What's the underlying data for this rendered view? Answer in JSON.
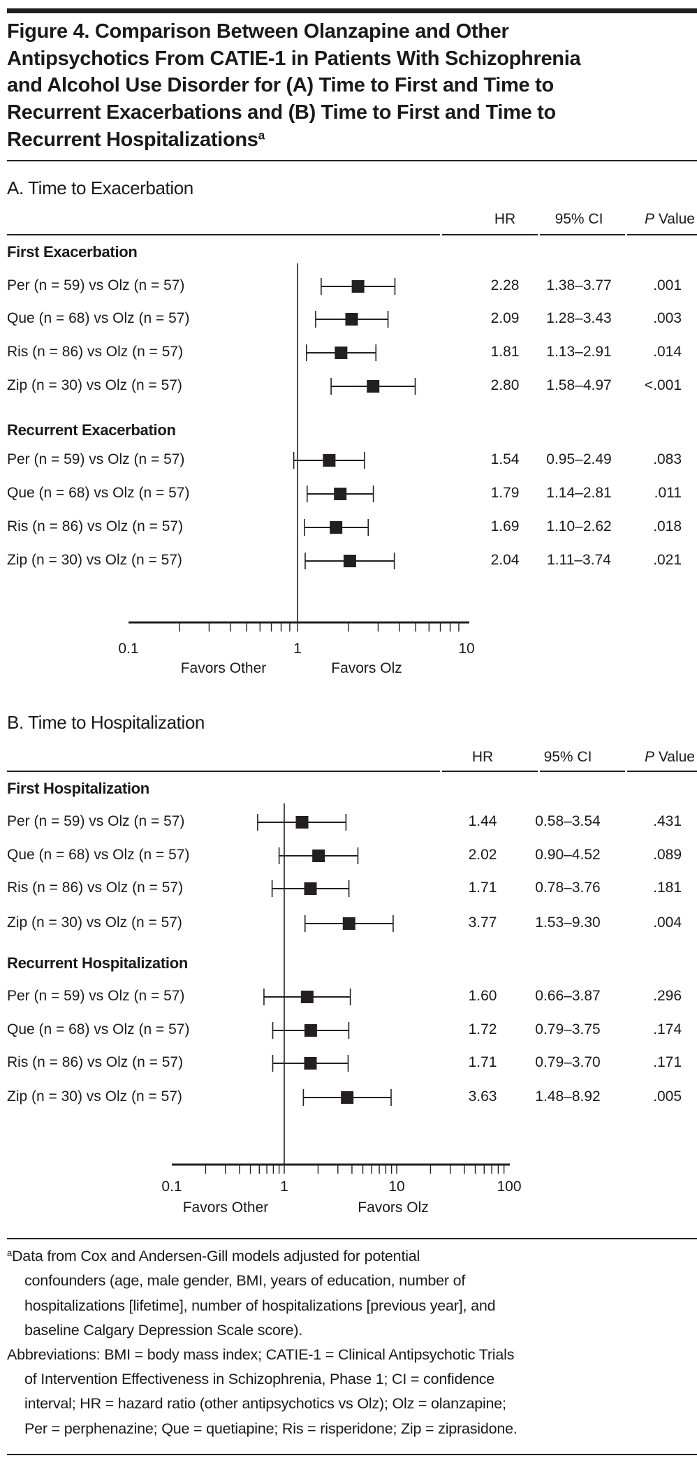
{
  "figure": {
    "title_lines": [
      "Figure 4. Comparison Between Olanzapine and Other",
      "Antipsychotics From CATIE-1 in Patients With Schizophrenia",
      "and Alcohol Use Disorder for (A) Time to First and Time to",
      "Recurrent Exacerbations and (B) Time to First and Time to",
      "Recurrent Hospitalizations"
    ],
    "title_superscript": "a"
  },
  "columns": {
    "hr": "HR",
    "ci": "95% CI",
    "p_italic": "P",
    "p_rest": " Value"
  },
  "chart_data": [
    {
      "type": "forest",
      "title": "A. Time to Exacerbation",
      "scale": "log",
      "xlim": [
        0.1,
        10
      ],
      "tick_labels": [
        "0.1",
        "1",
        "10"
      ],
      "ticks": [
        0.1,
        1,
        10
      ],
      "reference_line": 1,
      "favors_left": "Favors Other",
      "favors_right": "Favors Olz",
      "groups": [
        {
          "name": "First Exacerbation",
          "rows": [
            {
              "label": "Per (n = 59) vs Olz (n = 57)",
              "hr": 2.28,
              "lo": 1.38,
              "hi": 3.77,
              "hr_text": "2.28",
              "ci_text": "1.38–3.77",
              "p_text": ".001"
            },
            {
              "label": "Que (n = 68) vs Olz (n = 57)",
              "hr": 2.09,
              "lo": 1.28,
              "hi": 3.43,
              "hr_text": "2.09",
              "ci_text": "1.28–3.43",
              "p_text": ".003"
            },
            {
              "label": "Ris (n = 86) vs Olz (n = 57)",
              "hr": 1.81,
              "lo": 1.13,
              "hi": 2.91,
              "hr_text": "1.81",
              "ci_text": "1.13–2.91",
              "p_text": ".014"
            },
            {
              "label": "Zip (n = 30) vs Olz (n = 57)",
              "hr": 2.8,
              "lo": 1.58,
              "hi": 4.97,
              "hr_text": "2.80",
              "ci_text": "1.58–4.97",
              "p_text": "<.001"
            }
          ]
        },
        {
          "name": "Recurrent Exacerbation",
          "rows": [
            {
              "label": "Per (n = 59) vs Olz (n = 57)",
              "hr": 1.54,
              "lo": 0.95,
              "hi": 2.49,
              "hr_text": "1.54",
              "ci_text": "0.95–2.49",
              "p_text": ".083"
            },
            {
              "label": "Que (n = 68) vs Olz (n = 57)",
              "hr": 1.79,
              "lo": 1.14,
              "hi": 2.81,
              "hr_text": "1.79",
              "ci_text": "1.14–2.81",
              "p_text": ".011"
            },
            {
              "label": "Ris (n = 86) vs Olz (n = 57)",
              "hr": 1.69,
              "lo": 1.1,
              "hi": 2.62,
              "hr_text": "1.69",
              "ci_text": "1.10–2.62",
              "p_text": ".018"
            },
            {
              "label": "Zip (n = 30) vs Olz (n = 57)",
              "hr": 2.04,
              "lo": 1.11,
              "hi": 3.74,
              "hr_text": "2.04",
              "ci_text": "1.11–3.74",
              "p_text": ".021"
            }
          ]
        }
      ]
    },
    {
      "type": "forest",
      "title": "B. Time to Hospitalization",
      "scale": "log",
      "xlim": [
        0.1,
        100
      ],
      "tick_labels": [
        "0.1",
        "1",
        "10",
        "100"
      ],
      "ticks": [
        0.1,
        1,
        10,
        100
      ],
      "reference_line": 1,
      "favors_left": "Favors Other",
      "favors_right": "Favors Olz",
      "groups": [
        {
          "name": "First Hospitalization",
          "rows": [
            {
              "label": "Per (n = 59) vs Olz (n = 57)",
              "hr": 1.44,
              "lo": 0.58,
              "hi": 3.54,
              "hr_text": "1.44",
              "ci_text": "0.58–3.54",
              "p_text": ".431"
            },
            {
              "label": "Que (n = 68) vs Olz (n = 57)",
              "hr": 2.02,
              "lo": 0.9,
              "hi": 4.52,
              "hr_text": "2.02",
              "ci_text": "0.90–4.52",
              "p_text": ".089"
            },
            {
              "label": "Ris (n = 86) vs Olz (n = 57)",
              "hr": 1.71,
              "lo": 0.78,
              "hi": 3.76,
              "hr_text": "1.71",
              "ci_text": "0.78–3.76",
              "p_text": ".181"
            },
            {
              "label": "Zip (n = 30) vs Olz (n = 57)",
              "hr": 3.77,
              "lo": 1.53,
              "hi": 9.3,
              "hr_text": "3.77",
              "ci_text": "1.53–9.30",
              "p_text": ".004"
            }
          ]
        },
        {
          "name": "Recurrent Hospitalization",
          "rows": [
            {
              "label": "Per (n = 59) vs Olz (n = 57)",
              "hr": 1.6,
              "lo": 0.66,
              "hi": 3.87,
              "hr_text": "1.60",
              "ci_text": "0.66–3.87",
              "p_text": ".296"
            },
            {
              "label": "Que (n = 68) vs Olz (n = 57)",
              "hr": 1.72,
              "lo": 0.79,
              "hi": 3.75,
              "hr_text": "1.72",
              "ci_text": "0.79–3.75",
              "p_text": ".174"
            },
            {
              "label": "Ris (n = 86) vs Olz (n = 57)",
              "hr": 1.71,
              "lo": 0.79,
              "hi": 3.7,
              "hr_text": "1.71",
              "ci_text": "0.79–3.70",
              "p_text": ".171"
            },
            {
              "label": "Zip (n = 30) vs Olz (n = 57)",
              "hr": 3.63,
              "lo": 1.48,
              "hi": 8.92,
              "hr_text": "3.63",
              "ci_text": "1.48–8.92",
              "p_text": ".005"
            }
          ]
        }
      ]
    }
  ],
  "footnotes": {
    "marker": "a",
    "note_lines": [
      "Data from Cox and Andersen-Gill models adjusted for potential",
      "confounders (age, male gender, BMI, years of education, number of",
      "hospitalizations [lifetime], number of hospitalizations [previous year], and",
      "baseline Calgary Depression Scale score)."
    ],
    "abbreviation_lines": [
      "Abbreviations: BMI = body mass index; CATIE-1 = Clinical Antipsychotic Trials",
      "of Intervention Effectiveness in Schizophrenia, Phase 1; CI = confidence",
      "interval; HR = hazard ratio (other antipsychotics vs Olz); Olz = olanzapine;",
      "Per = perphenazine; Que = quetiapine; Ris = risperidone; Zip = ziprasidone."
    ]
  },
  "colors": {
    "ink": "#231f20",
    "background": "#ffffff"
  }
}
